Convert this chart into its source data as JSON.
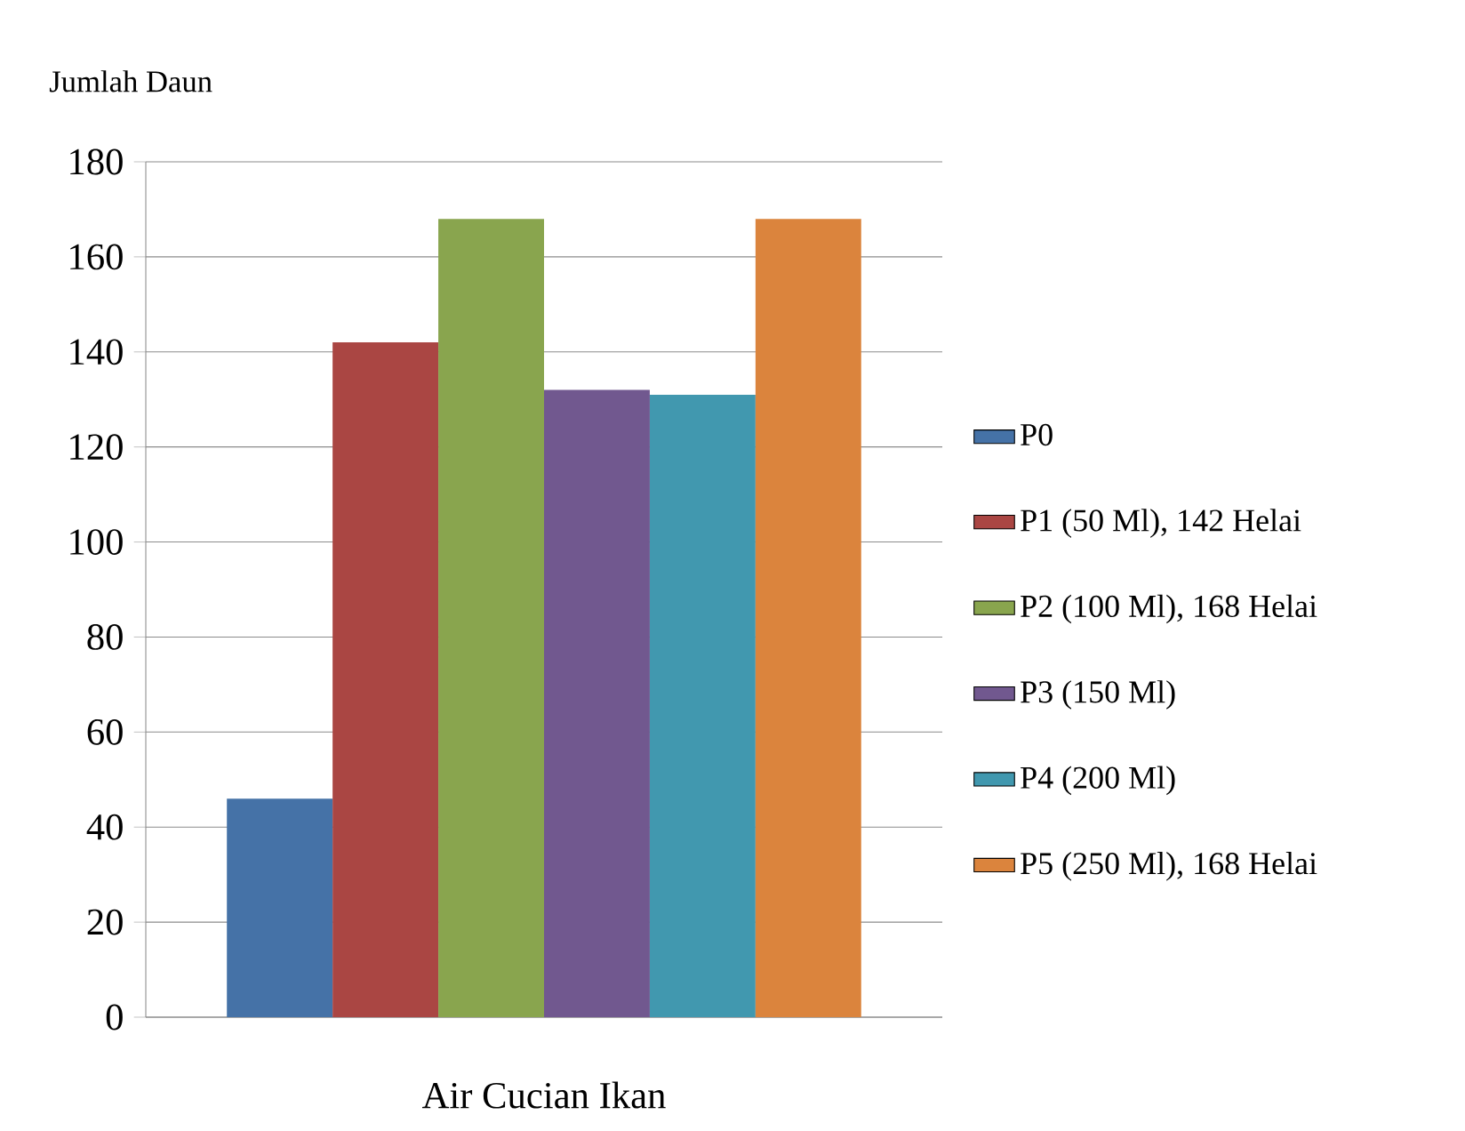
{
  "chart_data": {
    "type": "bar",
    "ylabel": "Jumlah Daun",
    "xlabel": null,
    "categories": [
      "Air Cucian Ikan"
    ],
    "series": [
      {
        "name": "P0",
        "color": "#4572a7",
        "values": [
          46
        ]
      },
      {
        "name": "P1 (50 Ml), 142 Helai",
        "color": "#aa4643",
        "values": [
          142
        ]
      },
      {
        "name": "P2 (100 Ml), 168 Helai",
        "color": "#89a54e",
        "values": [
          168
        ]
      },
      {
        "name": "P3 (150 Ml)",
        "color": "#71588f",
        "values": [
          132
        ]
      },
      {
        "name": "P4 (200 Ml)",
        "color": "#4198af",
        "values": [
          131
        ]
      },
      {
        "name": "P5 (250 Ml), 168 Helai",
        "color": "#db843d",
        "values": [
          168
        ]
      }
    ],
    "ylim": [
      0,
      180
    ],
    "yticks": [
      0,
      20,
      40,
      60,
      80,
      100,
      120,
      140,
      160,
      180
    ],
    "grid": "y",
    "legend": "right"
  }
}
